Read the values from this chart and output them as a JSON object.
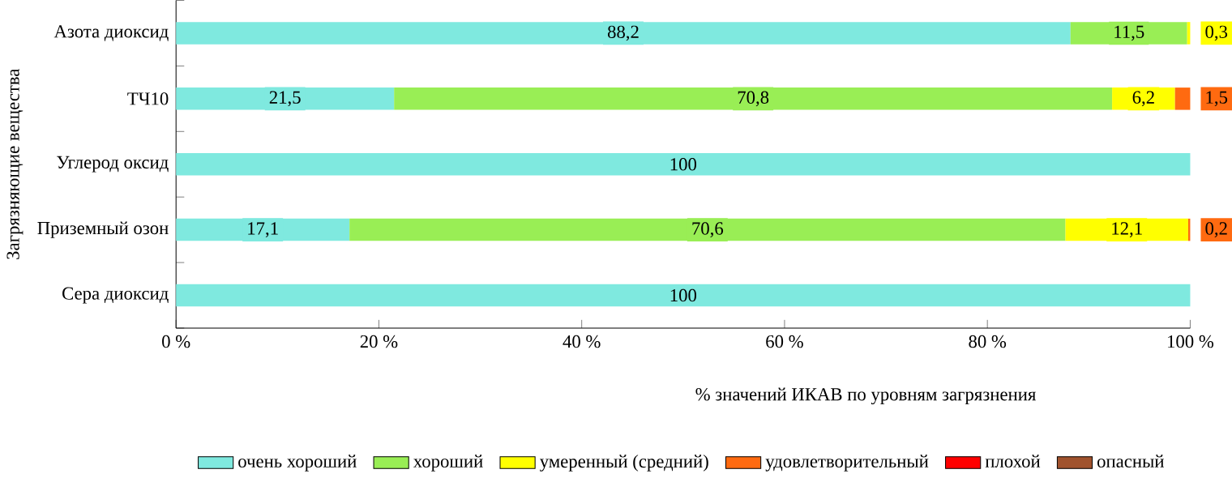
{
  "chart_data": {
    "type": "bar",
    "orientation": "horizontal",
    "stacked": true,
    "ylabel": "Загрязняющие вещества",
    "xlabel": "% значений ИКАВ по уровням загрязнения",
    "categories": [
      "Азота диоксид",
      "ТЧ10",
      "Углерод оксид",
      "Приземный озон",
      "Сера диоксид"
    ],
    "series": [
      {
        "name": "очень хороший",
        "color": "#7fe9df",
        "values": [
          88.2,
          21.5,
          100,
          17.1,
          100
        ],
        "value_labels": [
          "88,2",
          "21,5",
          "100",
          "17,1",
          "100"
        ]
      },
      {
        "name": "хороший",
        "color": "#99ee55",
        "values": [
          11.5,
          70.8,
          null,
          70.6,
          null
        ],
        "value_labels": [
          "11,5",
          "70,8",
          null,
          "70,6",
          null
        ]
      },
      {
        "name": "умеренный (средний)",
        "color": "#ffff00",
        "values": [
          0.3,
          6.2,
          null,
          12.1,
          null
        ],
        "value_labels": [
          "0,3",
          "6,2",
          null,
          "12,1",
          null
        ]
      },
      {
        "name": "удовлетворительный",
        "color": "#ff6a10",
        "values": [
          null,
          1.5,
          null,
          0.2,
          null
        ],
        "value_labels": [
          null,
          "1,5",
          null,
          "0,2",
          null
        ]
      },
      {
        "name": "плохой",
        "color": "#ff0000",
        "values": [
          null,
          null,
          null,
          null,
          null
        ]
      },
      {
        "name": "опасный",
        "color": "#a0522d",
        "values": [
          null,
          null,
          null,
          null,
          null
        ]
      }
    ],
    "xlim": [
      0,
      100
    ],
    "xticks": [
      {
        "value": 0,
        "label": "0 %"
      },
      {
        "value": 20,
        "label": "20 %"
      },
      {
        "value": 40,
        "label": "40 %"
      },
      {
        "value": 60,
        "label": "60 %"
      },
      {
        "value": 80,
        "label": "80 %"
      },
      {
        "value": 100,
        "label": "100 %"
      }
    ],
    "grid": false,
    "legend": "bottom"
  }
}
